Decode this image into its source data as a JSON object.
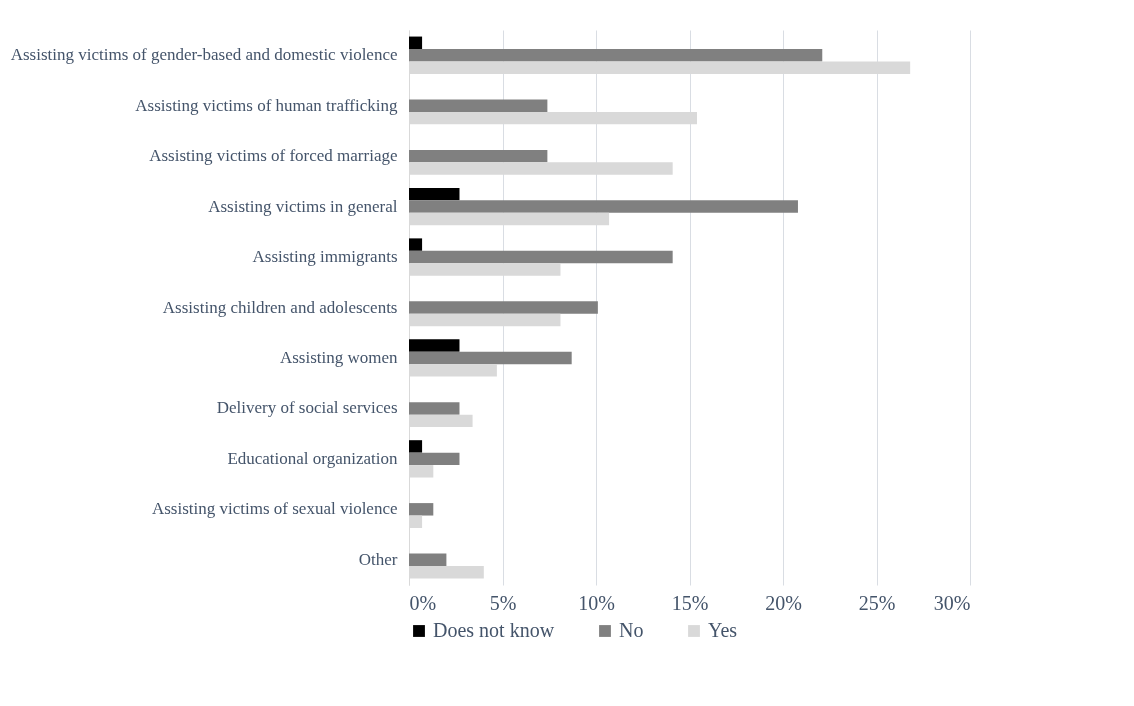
{
  "chart_data": {
    "type": "bar",
    "orientation": "horizontal",
    "categories": [
      "Assisting victims of gender-based and domestic violence",
      "Assisting victims of human trafficking",
      "Assisting victims of forced marriage",
      "Assisting victims in general",
      "Assisting immigrants",
      "Assisting children and adolescents",
      "Assisting women",
      "Delivery of social services",
      "Educational organization",
      "Assisting victims of sexual violence",
      "Other"
    ],
    "series": [
      {
        "name": "Does not know",
        "color": "#000000",
        "values": [
          0.7,
          null,
          null,
          2.7,
          0.7,
          null,
          2.7,
          null,
          0.7,
          null,
          null
        ]
      },
      {
        "name": "No",
        "color": "#808080",
        "values": [
          22.1,
          7.4,
          7.4,
          20.8,
          14.1,
          10.1,
          8.7,
          2.7,
          2.7,
          1.3,
          2.0
        ]
      },
      {
        "name": "Yes",
        "color": "#d9d9d9",
        "values": [
          26.8,
          15.4,
          14.1,
          10.7,
          8.1,
          8.1,
          4.7,
          3.4,
          1.3,
          0.7,
          4.0
        ]
      }
    ],
    "xlim": [
      0,
      30
    ],
    "xticks": [
      {
        "value": 0,
        "label": "0%"
      },
      {
        "value": 5,
        "label": "5%"
      },
      {
        "value": 10,
        "label": "10%"
      },
      {
        "value": 15,
        "label": "15%"
      },
      {
        "value": 20,
        "label": "20%"
      },
      {
        "value": 25,
        "label": "25%"
      },
      {
        "value": 30,
        "label": "30%"
      }
    ],
    "grid": "x",
    "legend": "bottom"
  }
}
